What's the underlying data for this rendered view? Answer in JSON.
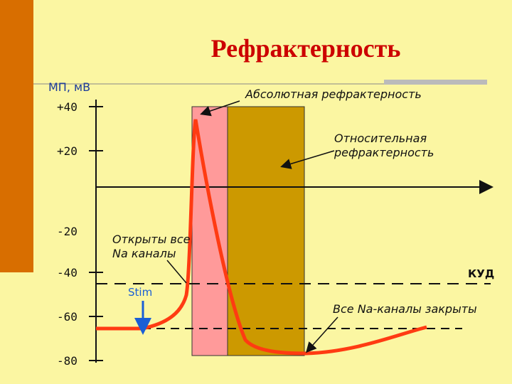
{
  "header": {
    "title": "Рефрактерность"
  },
  "axis": {
    "label": "МП, мВ",
    "ticks": [
      "+40",
      "+20",
      "-20",
      "-40",
      "-60",
      "-80"
    ]
  },
  "annotations": {
    "absolute": "Абсолютная рефрактерность",
    "relative": [
      "Относительная",
      "рефрактерность"
    ],
    "open": [
      "Открыты все",
      "Na каналы"
    ],
    "stim": "Stim",
    "threshold": "КУД",
    "closed": "Все Na-каналы закрыты"
  }
}
